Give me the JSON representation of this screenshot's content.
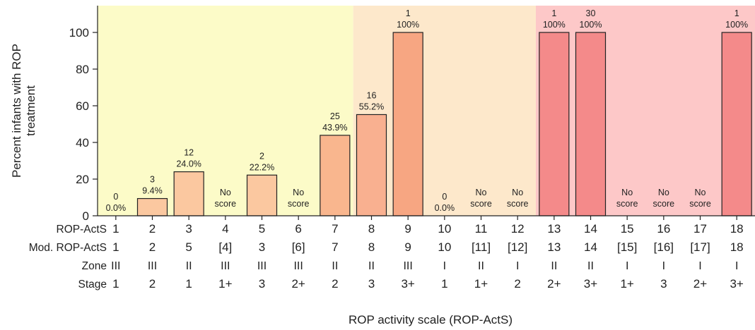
{
  "chart_data": {
    "type": "bar",
    "ylabel": "Percent infants with ROP treatment",
    "xlabel": "ROP activity scale (ROP-ActS)",
    "ylim": [
      0,
      115
    ],
    "y_ticks": [
      0,
      20,
      40,
      60,
      80,
      100
    ],
    "grid": false,
    "categories": [
      "1",
      "2",
      "3",
      "4",
      "5",
      "6",
      "7",
      "8",
      "9",
      "10",
      "11",
      "12",
      "13",
      "14",
      "15",
      "16",
      "17",
      "18"
    ],
    "values": [
      0.0,
      9.4,
      24.0,
      null,
      22.2,
      null,
      43.9,
      55.2,
      100,
      0.0,
      null,
      null,
      100,
      100,
      null,
      null,
      null,
      100
    ],
    "counts": [
      "0",
      "3",
      "12",
      "",
      "2",
      "",
      "25",
      "16",
      "1",
      "0",
      "",
      "",
      "1",
      "30",
      "",
      "",
      "",
      "1"
    ],
    "labels": [
      "0.0%",
      "9.4%",
      "24.0%",
      "No score",
      "22.2%",
      "No score",
      "43.9%",
      "55.2%",
      "100%",
      "0.0%",
      "No score",
      "No score",
      "100%",
      "100%",
      "No score",
      "No score",
      "No score",
      "100%"
    ],
    "bar_colors": [
      "#fbc8a0",
      "#fbc8a0",
      "#fbc8a0",
      "#fbc8a0",
      "#fbc8a0",
      "#fbc8a0",
      "#f9b68e",
      "#f9b090",
      "#f7a682",
      "#f6a090",
      "#f6a090",
      "#f6a090",
      "#f48a8a",
      "#f48a8a",
      "#f48a8a",
      "#f48a8a",
      "#f48a8a",
      "#f48a8a"
    ],
    "bands": [
      {
        "from": 1,
        "to": 7,
        "color": "#fcfbc8"
      },
      {
        "from": 8,
        "to": 12,
        "color": "#fde8cb"
      },
      {
        "from": 13,
        "to": 18,
        "color": "#fdc8c8"
      }
    ],
    "rows": [
      {
        "label": "ROP-ActS",
        "values": [
          "1",
          "2",
          "3",
          "4",
          "5",
          "6",
          "7",
          "8",
          "9",
          "10",
          "11",
          "12",
          "13",
          "14",
          "15",
          "16",
          "17",
          "18"
        ]
      },
      {
        "label": "Mod. ROP-ActS",
        "values": [
          "1",
          "2",
          "5",
          "[4]",
          "3",
          "[6]",
          "7",
          "8",
          "9",
          "10",
          "[11]",
          "[12]",
          "13",
          "14",
          "[15]",
          "[16]",
          "[17]",
          "18"
        ]
      },
      {
        "label": "Zone",
        "values": [
          "III",
          "III",
          "II",
          "III",
          "III",
          "III",
          "II",
          "II",
          "III",
          "I",
          "II",
          "I",
          "II",
          "II",
          "I",
          "I",
          "I",
          "I"
        ]
      },
      {
        "label": "Stage",
        "values": [
          "1",
          "2",
          "1",
          "1+",
          "3",
          "2+",
          "2",
          "3",
          "3+",
          "1",
          "1+",
          "2",
          "2+",
          "3+",
          "1+",
          "3",
          "2+",
          "3+"
        ]
      }
    ]
  }
}
